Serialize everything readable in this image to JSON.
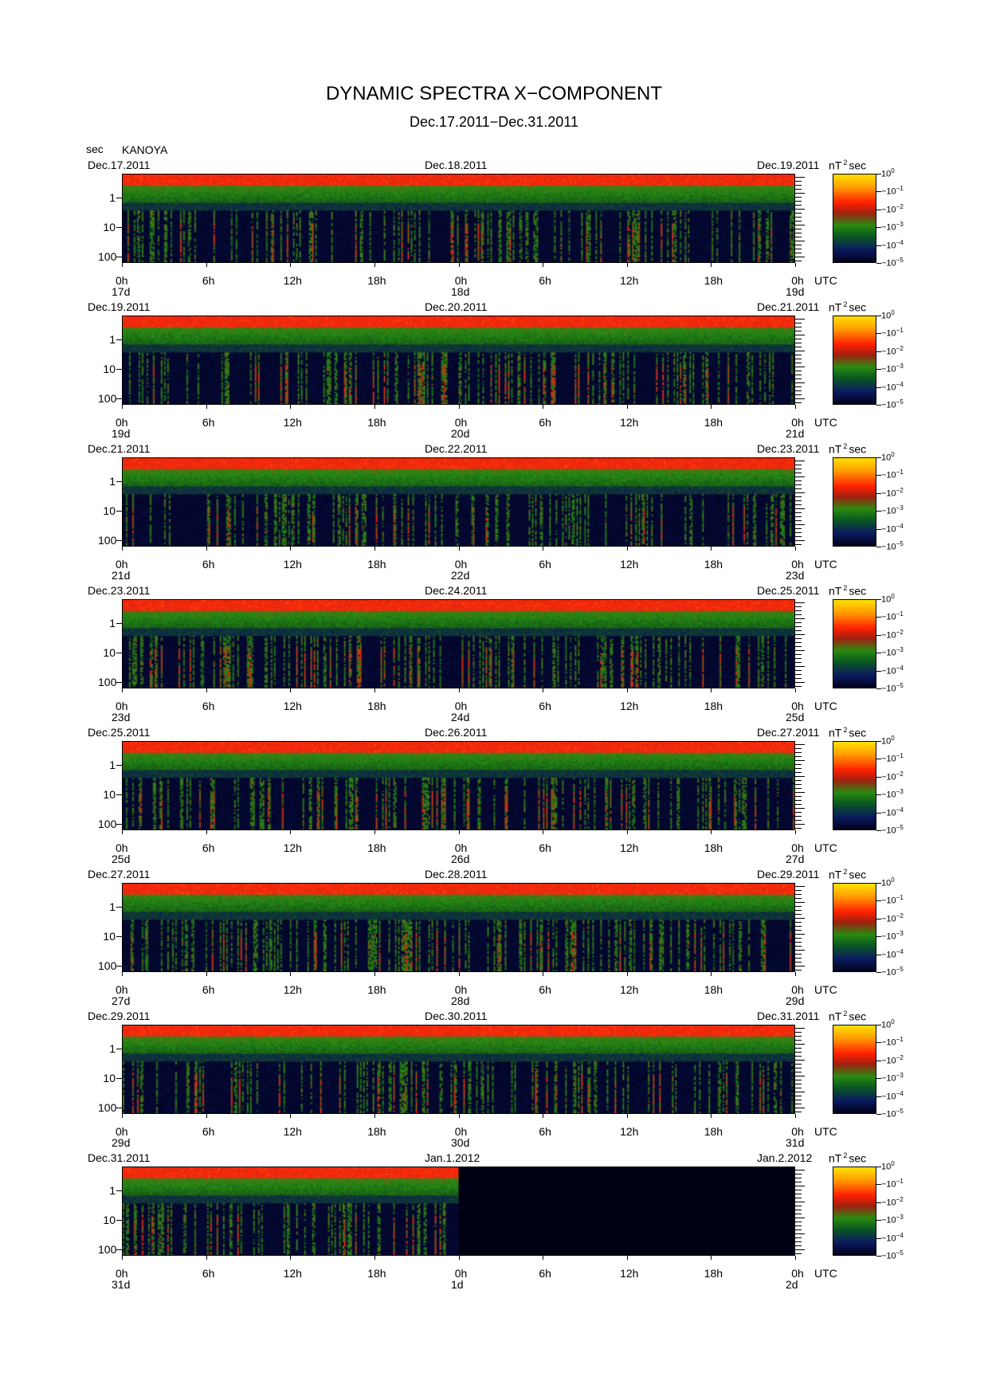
{
  "title": "DYNAMIC SPECTRA X−COMPONENT",
  "subtitle": "Dec.17.2011−Dec.31.2011",
  "y_unit_label": "sec",
  "station": "KANOYA",
  "y_ticks": [
    "1",
    "10",
    "100"
  ],
  "x_ticks": [
    "0h",
    "6h",
    "12h",
    "18h",
    "0h",
    "6h",
    "12h",
    "18h",
    "0h"
  ],
  "utc_label": "UTC",
  "colorbar": {
    "unit_base": "nT",
    "unit_exp": "2",
    "unit_tail": "sec",
    "ticks": [
      {
        "base": "10",
        "exp": "0"
      },
      {
        "base": "−10",
        "exp": "−1"
      },
      {
        "base": "−10",
        "exp": "−2"
      },
      {
        "base": "−10",
        "exp": "−3"
      },
      {
        "base": "−10",
        "exp": "−4"
      },
      {
        "base": "−10",
        "exp": "−5"
      }
    ]
  },
  "colors": {
    "low": "#000018",
    "mid_low": "#0a1a60",
    "mid": "#2a8a10",
    "high": "#ff2000",
    "max": "#ffe000"
  },
  "chart_data": {
    "type": "heatmap",
    "y_scale": "log",
    "panels": [
      {
        "date_left": "Dec.17.2011",
        "date_mid": "Dec.18.2011",
        "date_right": "Dec.19.2011",
        "day_left": "17d",
        "day_mid": "18d",
        "day_right": "19d",
        "data_coverage": 1.0
      },
      {
        "date_left": "Dec.19.2011",
        "date_mid": "Dec.20.2011",
        "date_right": "Dec.21.2011",
        "day_left": "19d",
        "day_mid": "20d",
        "day_right": "21d",
        "data_coverage": 1.0
      },
      {
        "date_left": "Dec.21.2011",
        "date_mid": "Dec.22.2011",
        "date_right": "Dec.23.2011",
        "day_left": "21d",
        "day_mid": "22d",
        "day_right": "23d",
        "data_coverage": 1.0
      },
      {
        "date_left": "Dec.23.2011",
        "date_mid": "Dec.24.2011",
        "date_right": "Dec.25.2011",
        "day_left": "23d",
        "day_mid": "24d",
        "day_right": "25d",
        "data_coverage": 1.0
      },
      {
        "date_left": "Dec.25.2011",
        "date_mid": "Dec.26.2011",
        "date_right": "Dec.27.2011",
        "day_left": "25d",
        "day_mid": "26d",
        "day_right": "27d",
        "data_coverage": 1.0
      },
      {
        "date_left": "Dec.27.2011",
        "date_mid": "Dec.28.2011",
        "date_right": "Dec.29.2011",
        "day_left": "27d",
        "day_mid": "28d",
        "day_right": "29d",
        "data_coverage": 1.0
      },
      {
        "date_left": "Dec.29.2011",
        "date_mid": "Dec.30.2011",
        "date_right": "Dec.31.2011",
        "day_left": "29d",
        "day_mid": "30d",
        "day_right": "31d",
        "data_coverage": 1.0
      },
      {
        "date_left": "Dec.31.2011",
        "date_mid": "Jan.1.2012",
        "date_right": "Jan.2.2012",
        "day_left": "31d",
        "day_mid": "1d",
        "day_right": "2d",
        "data_coverage": 0.5
      }
    ]
  }
}
